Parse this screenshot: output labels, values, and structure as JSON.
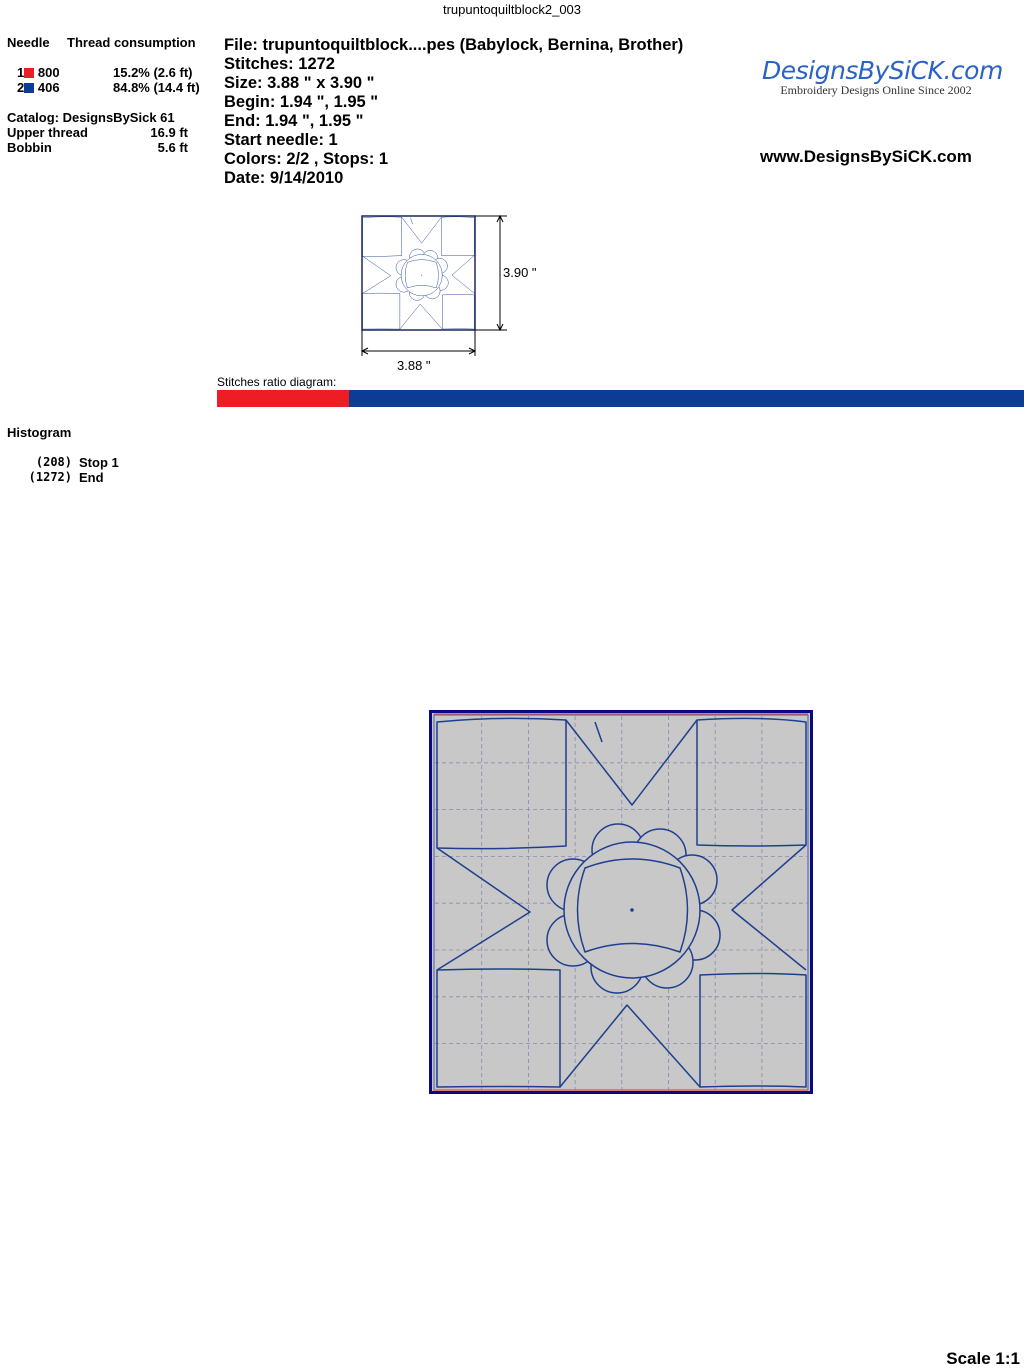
{
  "title": "trupuntoquiltblock2_003",
  "needles": {
    "header_needle": "Needle",
    "header_thread": "Thread consumption",
    "items": [
      {
        "num": "1",
        "code": "800",
        "color": "#ee1c25",
        "consumption": "15.2% (2.6 ft)"
      },
      {
        "num": "2",
        "code": "406",
        "color": "#0c3c94",
        "consumption": "84.8% (14.4 ft)"
      }
    ]
  },
  "catalog": "Catalog: DesignsBySick 61",
  "upper_thread": {
    "label": "Upper thread",
    "value": "16.9 ft"
  },
  "bobbin": {
    "label": "Bobbin",
    "value": "5.6 ft"
  },
  "info": {
    "file": "File: trupuntoquiltblock....pes  (Babylock, Bernina, Brother)",
    "stitches": "Stitches: 1272",
    "size": "Size: 3.88 \" x 3.90 \"",
    "begin": "Begin: 1.94 \", 1.95 \"",
    "end": "End: 1.94 \", 1.95 \"",
    "start_needle": "Start needle: 1",
    "colors": "Colors: 2/2 , Stops: 1",
    "date": "Date: 9/14/2010"
  },
  "logo": {
    "name": "DesignsBySiCK.com",
    "tagline": "Embroidery Designs Online Since 2002"
  },
  "website": "www.DesignsBySiCK.com",
  "thumbnail": {
    "height_label": "3.90 \"",
    "width_label": "3.88 \""
  },
  "ratio": {
    "label": "Stitches ratio diagram:",
    "fractions": [
      0.163,
      0.837
    ],
    "colors": [
      "#ee1c25",
      "#0c3c94"
    ]
  },
  "histogram": {
    "title": "Histogram",
    "items": [
      {
        "count": "(208)",
        "label": "Stop 1"
      },
      {
        "count": "(1272)",
        "label": "End"
      }
    ]
  },
  "scale": "Scale 1:1",
  "colors": {
    "stitch": "#1e3f8f",
    "hoop": "#0a0a80",
    "fabric": "#c8c8c8"
  }
}
